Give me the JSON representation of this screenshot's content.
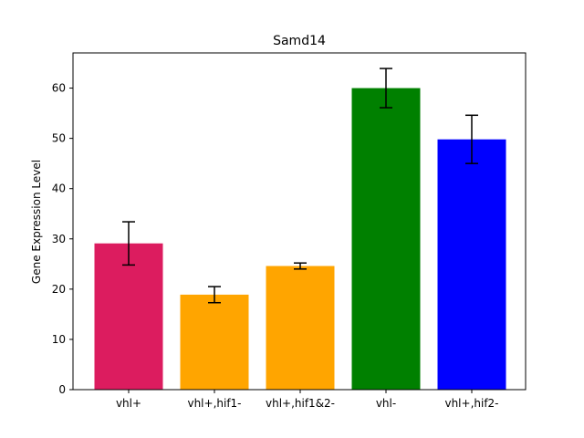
{
  "chart_data": {
    "type": "bar",
    "title": "Samd14",
    "xlabel": "",
    "ylabel": "Gene Expression Level",
    "categories": [
      "vhl+",
      "vhl+,hif1-",
      "vhl+,hif1&2-",
      "vhl-",
      "vhl+,hif2-"
    ],
    "values": [
      29.1,
      18.9,
      24.6,
      60.0,
      49.8
    ],
    "errors": [
      4.3,
      1.6,
      0.6,
      3.9,
      4.8
    ],
    "colors": [
      "#dc1c5f",
      "#ffa500",
      "#ffa500",
      "#008000",
      "#0000ff"
    ],
    "ylim": [
      0,
      67
    ],
    "yticks": [
      0,
      10,
      20,
      30,
      40,
      50,
      60
    ],
    "grid": false
  }
}
